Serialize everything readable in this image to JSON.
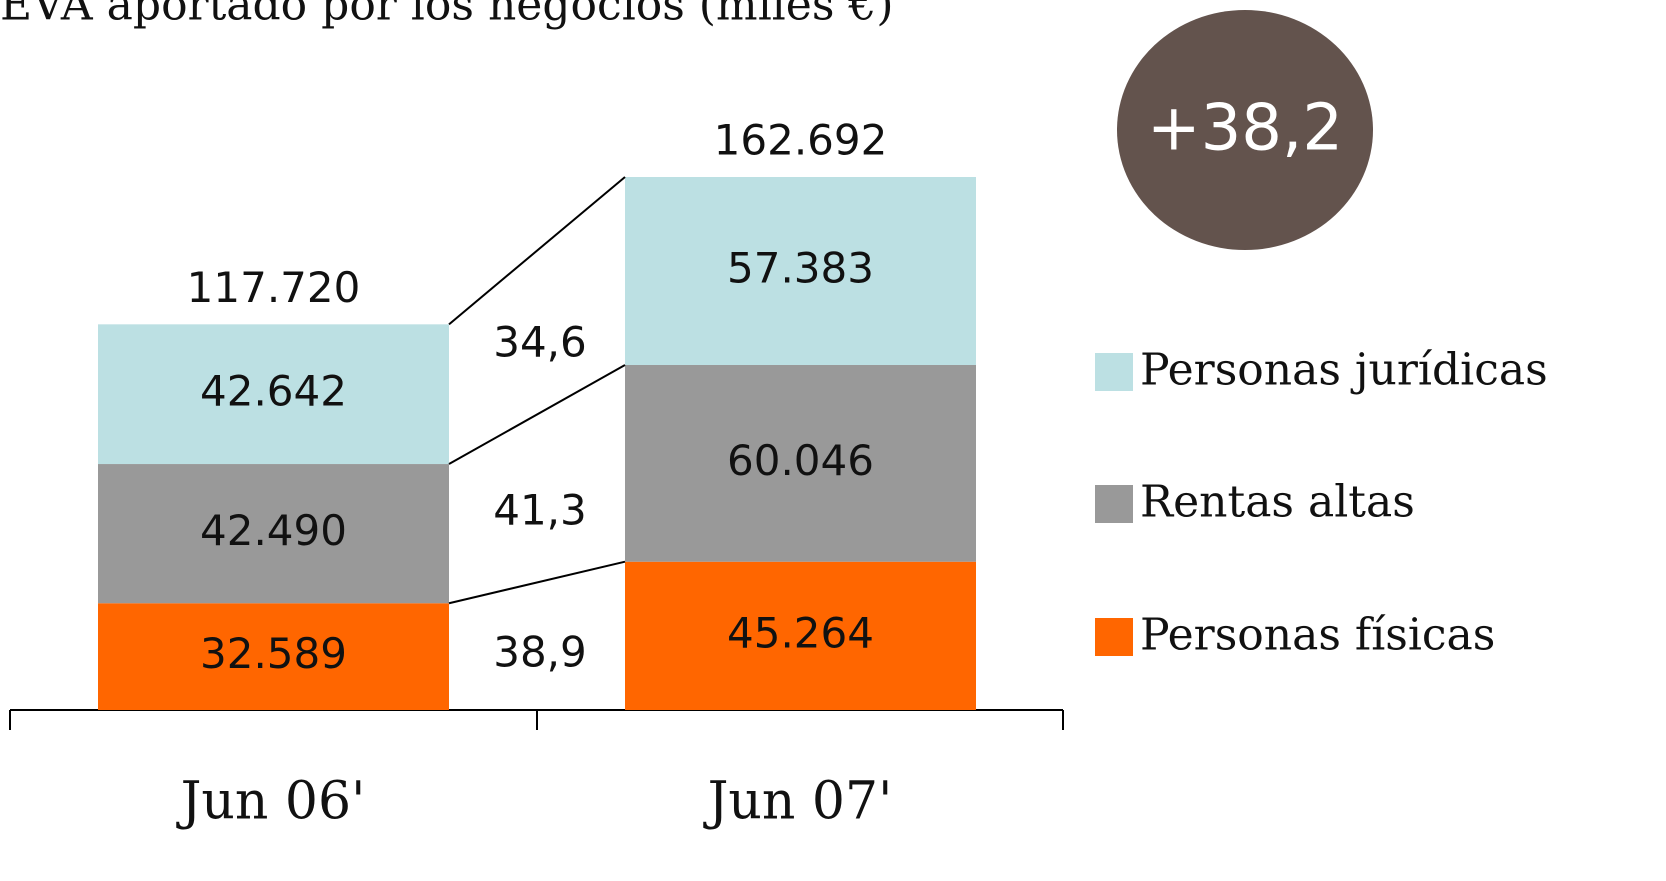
{
  "chart_data": {
    "type": "stacked_bar",
    "title": "EVA aportado por los negocios  (miles €)",
    "categories": [
      "Jun 06'",
      "Jun 07'"
    ],
    "series": [
      {
        "name": "Personas físicas",
        "color": "#ff6600",
        "values": [
          32589,
          45264
        ],
        "value_labels": [
          "32.589",
          "45.264"
        ]
      },
      {
        "name": "Rentas altas",
        "color": "#999999",
        "values": [
          42490,
          60046
        ],
        "value_labels": [
          "42.490",
          "60.046"
        ]
      },
      {
        "name": "Personas jurídicas",
        "color": "#bce0e3",
        "values": [
          42642,
          57383
        ],
        "value_labels": [
          "42.642",
          "57.383"
        ]
      }
    ],
    "totals": {
      "values": [
        117720,
        162692
      ],
      "value_labels": [
        "117.720",
        "162.692"
      ]
    },
    "growth": {
      "values": [
        38.9,
        41.3,
        34.6
      ],
      "value_labels": [
        "38,9",
        "41,3",
        "34,6"
      ]
    },
    "total_growth": {
      "value": 38.2,
      "label": "+38,2"
    }
  }
}
